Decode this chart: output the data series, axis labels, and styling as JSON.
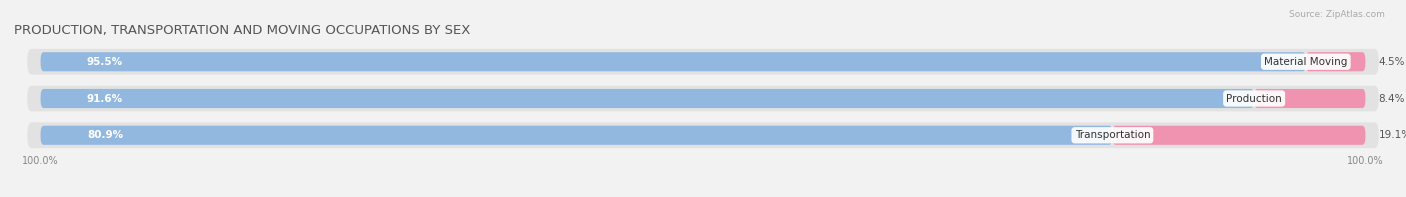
{
  "title": "PRODUCTION, TRANSPORTATION AND MOVING OCCUPATIONS BY SEX",
  "source": "Source: ZipAtlas.com",
  "categories": [
    "Material Moving",
    "Production",
    "Transportation"
  ],
  "male_pct": [
    95.5,
    91.6,
    80.9
  ],
  "female_pct": [
    4.5,
    8.4,
    19.1
  ],
  "male_color": "#92b8e0",
  "female_color": "#f093b0",
  "bar_bg_color": "#e2e2e2",
  "bg_color": "#f2f2f2",
  "title_fontsize": 9.5,
  "label_fontsize": 7.5,
  "bar_label_fontsize": 7.5,
  "axis_label_fontsize": 7,
  "bar_height": 0.52,
  "figsize": [
    14.06,
    1.97
  ],
  "total_width": 100
}
